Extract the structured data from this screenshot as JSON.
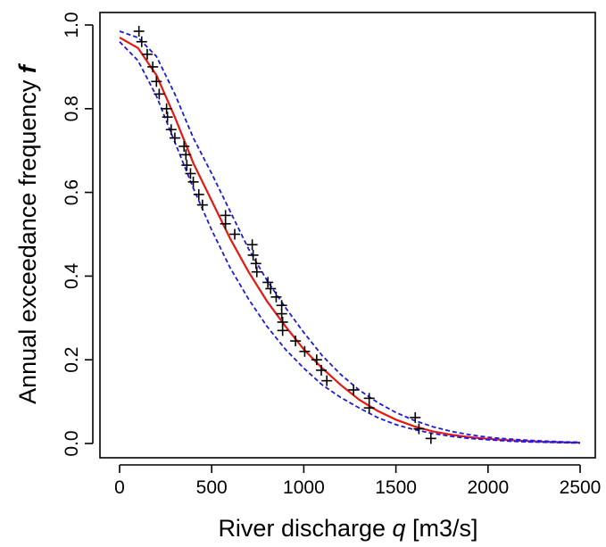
{
  "chart_data": {
    "type": "scatter",
    "title": "",
    "xlabel": {
      "prefix": "River discharge ",
      "variable": "q",
      "suffix": " [m3/s]"
    },
    "ylabel": {
      "prefix": "Annual exceedance frequency ",
      "variable": "f"
    },
    "xlim": [
      0,
      2500
    ],
    "ylim": [
      0,
      1.0
    ],
    "xticks": [
      0,
      500,
      1000,
      1500,
      2000,
      2500
    ],
    "yticks": [
      0.0,
      0.2,
      0.4,
      0.6,
      0.8,
      1.0
    ],
    "xtick_labels": [
      "0",
      "500",
      "1000",
      "1500",
      "2000",
      "2500"
    ],
    "ytick_labels": [
      "0.0",
      "0.2",
      "0.4",
      "0.6",
      "0.8",
      "1.0"
    ],
    "grid": false,
    "legend": "none",
    "series": [
      {
        "kind": "points",
        "marker": "plus",
        "color": "#000000",
        "points": [
          [
            105,
            0.985
          ],
          [
            120,
            0.96
          ],
          [
            150,
            0.93
          ],
          [
            180,
            0.9
          ],
          [
            200,
            0.865
          ],
          [
            215,
            0.835
          ],
          [
            255,
            0.8
          ],
          [
            260,
            0.78
          ],
          [
            280,
            0.75
          ],
          [
            300,
            0.73
          ],
          [
            350,
            0.71
          ],
          [
            360,
            0.69
          ],
          [
            365,
            0.665
          ],
          [
            385,
            0.645
          ],
          [
            400,
            0.625
          ],
          [
            430,
            0.595
          ],
          [
            450,
            0.57
          ],
          [
            575,
            0.545
          ],
          [
            575,
            0.525
          ],
          [
            625,
            0.5
          ],
          [
            720,
            0.475
          ],
          [
            725,
            0.45
          ],
          [
            740,
            0.43
          ],
          [
            745,
            0.41
          ],
          [
            805,
            0.385
          ],
          [
            820,
            0.37
          ],
          [
            850,
            0.35
          ],
          [
            880,
            0.33
          ],
          [
            880,
            0.31
          ],
          [
            885,
            0.29
          ],
          [
            885,
            0.27
          ],
          [
            955,
            0.245
          ],
          [
            1005,
            0.22
          ],
          [
            1070,
            0.2
          ],
          [
            1095,
            0.175
          ],
          [
            1125,
            0.15
          ],
          [
            1270,
            0.128
          ],
          [
            1355,
            0.108
          ],
          [
            1355,
            0.085
          ],
          [
            1605,
            0.062
          ],
          [
            1625,
            0.035
          ],
          [
            1690,
            0.012
          ]
        ]
      },
      {
        "kind": "line",
        "style": "solid",
        "color": "#e8170f",
        "x": [
          0,
          100,
          200,
          300,
          400,
          500,
          600,
          700,
          800,
          900,
          1000,
          1100,
          1200,
          1300,
          1400,
          1500,
          1600,
          1700,
          1800,
          1900,
          2000,
          2100,
          2200,
          2300,
          2400,
          2500
        ],
        "y": [
          0.97,
          0.945,
          0.88,
          0.78,
          0.67,
          0.58,
          0.49,
          0.41,
          0.34,
          0.28,
          0.225,
          0.18,
          0.14,
          0.105,
          0.078,
          0.057,
          0.041,
          0.029,
          0.021,
          0.015,
          0.011,
          0.008,
          0.006,
          0.004,
          0.003,
          0.002
        ]
      },
      {
        "kind": "line",
        "style": "dashed",
        "color": "#1a1ae6",
        "x": [
          0,
          100,
          200,
          300,
          400,
          500,
          600,
          700,
          800,
          900,
          1000,
          1100,
          1200,
          1300,
          1400,
          1500,
          1600,
          1700,
          1800,
          1900,
          2000,
          2100,
          2200,
          2300,
          2400,
          2500
        ],
        "y": [
          0.985,
          0.97,
          0.925,
          0.835,
          0.73,
          0.645,
          0.555,
          0.465,
          0.39,
          0.325,
          0.265,
          0.21,
          0.165,
          0.128,
          0.098,
          0.074,
          0.055,
          0.04,
          0.029,
          0.021,
          0.015,
          0.011,
          0.008,
          0.006,
          0.004,
          0.003
        ]
      },
      {
        "kind": "line",
        "style": "dashed",
        "color": "#1a1ae6",
        "x": [
          0,
          100,
          200,
          300,
          400,
          500,
          600,
          700,
          800,
          900,
          1000,
          1100,
          1200,
          1300,
          1400,
          1500,
          1600,
          1700,
          1800,
          1900,
          2000,
          2100,
          2200,
          2300,
          2400,
          2500
        ],
        "y": [
          0.96,
          0.915,
          0.83,
          0.72,
          0.61,
          0.51,
          0.42,
          0.345,
          0.28,
          0.225,
          0.18,
          0.14,
          0.11,
          0.085,
          0.062,
          0.045,
          0.033,
          0.024,
          0.017,
          0.012,
          0.009,
          0.006,
          0.004,
          0.003,
          0.002,
          0.001
        ]
      }
    ]
  }
}
